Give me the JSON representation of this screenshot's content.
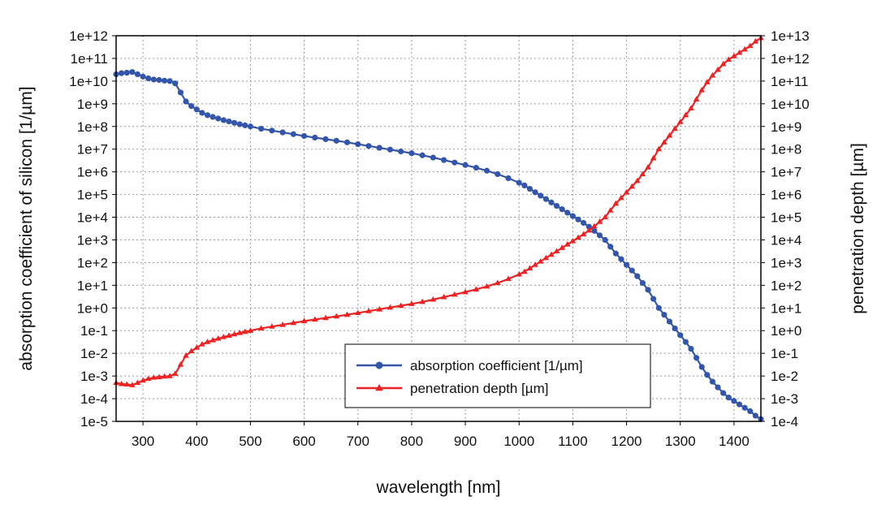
{
  "chart_data": {
    "type": "line",
    "title": "",
    "xlabel": "wavelength [nm]",
    "ylabel_left": "absorption coefficient of silicon [1/µm]",
    "ylabel_right": "penetration depth [µm]",
    "xlim": [
      250,
      1450
    ],
    "xticks": [
      300,
      400,
      500,
      600,
      700,
      800,
      900,
      1000,
      1100,
      1200,
      1300,
      1400
    ],
    "xtick_labels": [
      "300",
      "400",
      "500",
      "600",
      "700",
      "800",
      "900",
      "1000",
      "1100",
      "1200",
      "1300",
      "1400"
    ],
    "ylim_left_log10": [
      -5,
      12
    ],
    "ylim_right_log10": [
      -4,
      13
    ],
    "yticks_left": [
      "1e+12",
      "1e+11",
      "1e+10",
      "1e+9",
      "1e+8",
      "1e+7",
      "1e+6",
      "1e+5",
      "1e+4",
      "1e+3",
      "1e+2",
      "1e+1",
      "1e+0",
      "1e-1",
      "1e-2",
      "1e-3",
      "1e-4",
      "1e-5"
    ],
    "yticks_right": [
      "1e+13",
      "1e+12",
      "1e+11",
      "1e+10",
      "1e+9",
      "1e+8",
      "1e+7",
      "1e+6",
      "1e+5",
      "1e+4",
      "1e+3",
      "1e+2",
      "1e+1",
      "1e+0",
      "1e-1",
      "1e-2",
      "1e-3",
      "1e-4"
    ],
    "grid": true,
    "legend_position": "bottom-center",
    "series": [
      {
        "name": "absorption coefficient [1/µm]",
        "axis": "left",
        "color": "#3355aa",
        "marker": "circle",
        "x": [
          250,
          260,
          270,
          280,
          290,
          300,
          310,
          320,
          330,
          340,
          350,
          360,
          370,
          380,
          390,
          400,
          410,
          420,
          430,
          440,
          450,
          460,
          470,
          480,
          490,
          500,
          520,
          540,
          560,
          580,
          600,
          620,
          640,
          660,
          680,
          700,
          720,
          740,
          760,
          780,
          800,
          820,
          840,
          860,
          880,
          900,
          920,
          940,
          960,
          980,
          1000,
          1010,
          1020,
          1030,
          1040,
          1050,
          1060,
          1070,
          1080,
          1090,
          1100,
          1110,
          1120,
          1130,
          1140,
          1150,
          1160,
          1170,
          1180,
          1190,
          1200,
          1210,
          1220,
          1230,
          1240,
          1250,
          1260,
          1270,
          1280,
          1290,
          1300,
          1310,
          1320,
          1330,
          1340,
          1350,
          1360,
          1370,
          1380,
          1390,
          1400,
          1410,
          1420,
          1430,
          1440,
          1450
        ],
        "log10_y": [
          10.3,
          10.35,
          10.37,
          10.4,
          10.3,
          10.2,
          10.12,
          10.07,
          10.05,
          10.02,
          10.0,
          9.9,
          9.5,
          9.1,
          8.9,
          8.75,
          8.6,
          8.5,
          8.42,
          8.35,
          8.28,
          8.22,
          8.16,
          8.1,
          8.05,
          8.0,
          7.9,
          7.82,
          7.74,
          7.66,
          7.58,
          7.51,
          7.44,
          7.37,
          7.3,
          7.22,
          7.14,
          7.06,
          6.98,
          6.9,
          6.82,
          6.73,
          6.63,
          6.52,
          6.41,
          6.3,
          6.18,
          6.05,
          5.9,
          5.72,
          5.52,
          5.4,
          5.25,
          5.1,
          4.95,
          4.8,
          4.65,
          4.5,
          4.35,
          4.2,
          4.05,
          3.9,
          3.75,
          3.58,
          3.4,
          3.2,
          3.0,
          2.7,
          2.4,
          2.15,
          1.9,
          1.65,
          1.4,
          1.1,
          0.8,
          0.4,
          0.0,
          -0.3,
          -0.6,
          -0.9,
          -1.2,
          -1.5,
          -1.8,
          -2.2,
          -2.6,
          -2.95,
          -3.25,
          -3.5,
          -3.75,
          -3.95,
          -4.1,
          -4.25,
          -4.4,
          -4.55,
          -4.75,
          -4.9
        ]
      },
      {
        "name": "penetration depth [µm]",
        "axis": "right",
        "color": "#ee2222",
        "marker": "triangle",
        "x": [
          250,
          260,
          270,
          280,
          290,
          300,
          310,
          320,
          330,
          340,
          350,
          360,
          370,
          380,
          390,
          400,
          410,
          420,
          430,
          440,
          450,
          460,
          470,
          480,
          490,
          500,
          520,
          540,
          560,
          580,
          600,
          620,
          640,
          660,
          680,
          700,
          720,
          740,
          760,
          780,
          800,
          820,
          840,
          860,
          880,
          900,
          920,
          940,
          960,
          980,
          1000,
          1010,
          1020,
          1030,
          1040,
          1050,
          1060,
          1070,
          1080,
          1090,
          1100,
          1110,
          1120,
          1130,
          1140,
          1150,
          1160,
          1170,
          1180,
          1190,
          1200,
          1210,
          1220,
          1230,
          1240,
          1250,
          1260,
          1270,
          1280,
          1290,
          1300,
          1310,
          1320,
          1330,
          1340,
          1350,
          1360,
          1370,
          1380,
          1390,
          1400,
          1410,
          1420,
          1430,
          1440,
          1450
        ],
        "log10_y": [
          -2.3,
          -2.35,
          -2.37,
          -2.4,
          -2.3,
          -2.2,
          -2.12,
          -2.07,
          -2.05,
          -2.02,
          -2.0,
          -1.9,
          -1.5,
          -1.1,
          -0.9,
          -0.75,
          -0.6,
          -0.5,
          -0.42,
          -0.35,
          -0.28,
          -0.22,
          -0.16,
          -0.1,
          -0.05,
          0.0,
          0.1,
          0.18,
          0.26,
          0.34,
          0.42,
          0.49,
          0.56,
          0.63,
          0.7,
          0.78,
          0.86,
          0.94,
          1.02,
          1.1,
          1.18,
          1.27,
          1.37,
          1.48,
          1.59,
          1.7,
          1.82,
          1.95,
          2.1,
          2.28,
          2.48,
          2.6,
          2.75,
          2.9,
          3.05,
          3.2,
          3.35,
          3.5,
          3.65,
          3.8,
          3.95,
          4.1,
          4.25,
          4.42,
          4.6,
          4.8,
          5.0,
          5.3,
          5.6,
          5.85,
          6.1,
          6.35,
          6.6,
          6.9,
          7.2,
          7.6,
          8.0,
          8.3,
          8.6,
          8.9,
          9.2,
          9.5,
          9.8,
          10.2,
          10.6,
          10.95,
          11.25,
          11.5,
          11.75,
          11.95,
          12.1,
          12.25,
          12.4,
          12.55,
          12.75,
          12.9
        ]
      }
    ]
  }
}
